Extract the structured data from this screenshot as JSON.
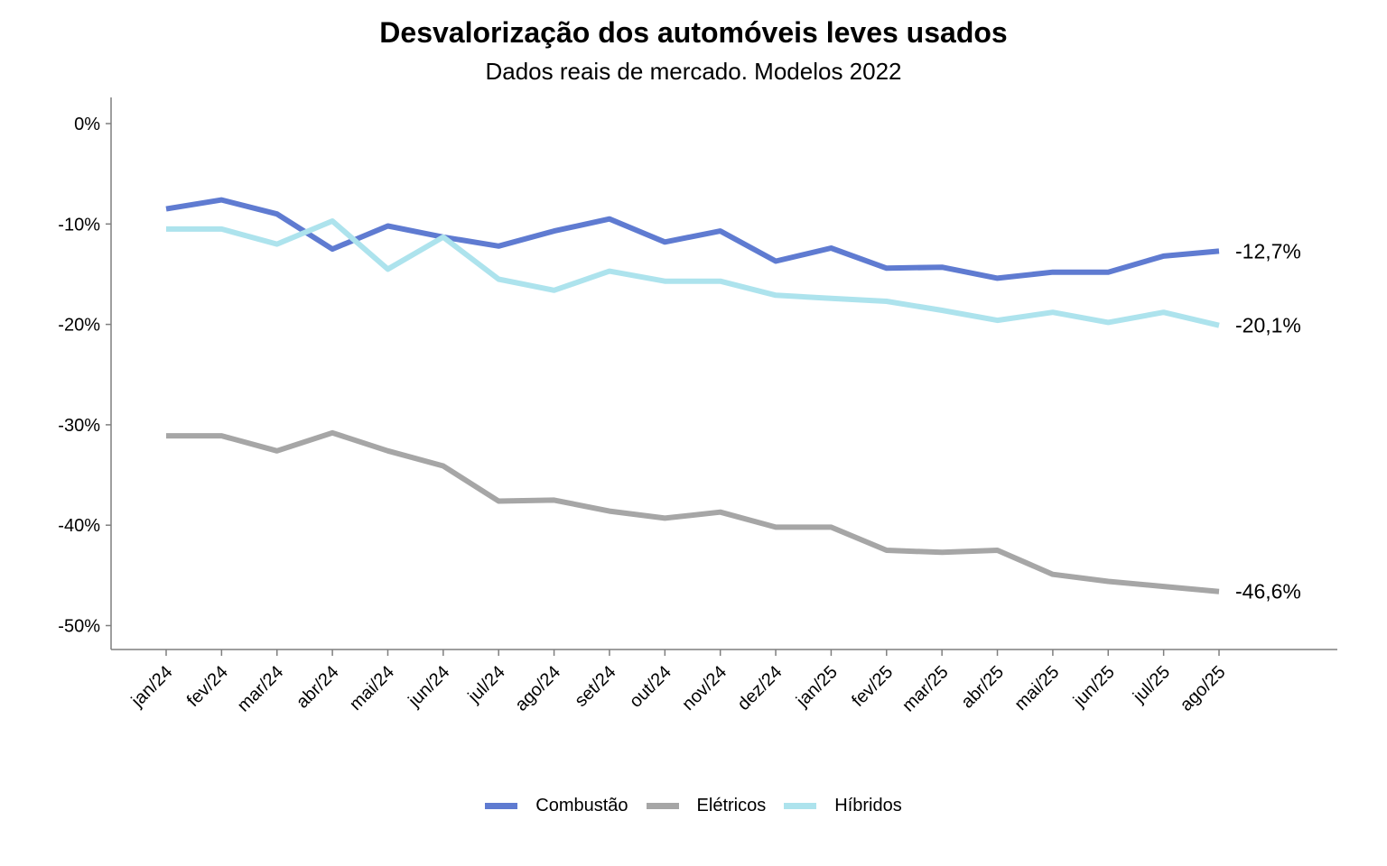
{
  "chart_data": {
    "type": "line",
    "title": "Desvalorização dos automóveis leves usados",
    "subtitle": "Dados reais de mercado. Modelos 2022",
    "x": [
      "jan/24",
      "fev/24",
      "mar/24",
      "abr/24",
      "mai/24",
      "jun/24",
      "jul/24",
      "ago/24",
      "set/24",
      "out/24",
      "nov/24",
      "dez/24",
      "jan/25",
      "fev/25",
      "mar/25",
      "abr/25",
      "mai/25",
      "jun/25",
      "jul/25",
      "ago/25"
    ],
    "y_ticks": [
      "0%",
      "-10%",
      "-20%",
      "-30%",
      "-40%",
      "-50%"
    ],
    "ylim": [
      -52.5,
      2.5
    ],
    "y_unit": "%",
    "grid": false,
    "legend_position": "bottom",
    "series": [
      {
        "name": "Combustão",
        "color": "#5f7bd1",
        "values": [
          -8.5,
          -7.6,
          -9.0,
          -12.5,
          -10.2,
          -11.3,
          -12.2,
          -10.7,
          -9.5,
          -11.8,
          -10.7,
          -13.7,
          -12.4,
          -14.4,
          -14.3,
          -15.4,
          -14.8,
          -14.8,
          -13.2,
          -12.7
        ],
        "end_label": "-12,7%"
      },
      {
        "name": "Elétricos",
        "color": "#a6a6a6",
        "values": [
          -31.1,
          -31.1,
          -32.6,
          -30.8,
          -32.6,
          -34.1,
          -37.6,
          -37.5,
          -38.6,
          -39.3,
          -38.7,
          -40.2,
          -40.2,
          -42.5,
          -42.7,
          -42.5,
          -44.9,
          -45.6,
          -46.1,
          -46.6
        ],
        "end_label": "-46,6%"
      },
      {
        "name": "Híbridos",
        "color": "#ade3ed",
        "values": [
          -10.5,
          -10.5,
          -12.0,
          -9.7,
          -14.5,
          -11.3,
          -15.5,
          -16.6,
          -14.7,
          -15.7,
          -15.7,
          -17.1,
          -17.4,
          -17.7,
          -18.6,
          -19.6,
          -18.8,
          -19.8,
          -18.8,
          -20.1
        ],
        "end_label": "-20,1%"
      }
    ]
  }
}
